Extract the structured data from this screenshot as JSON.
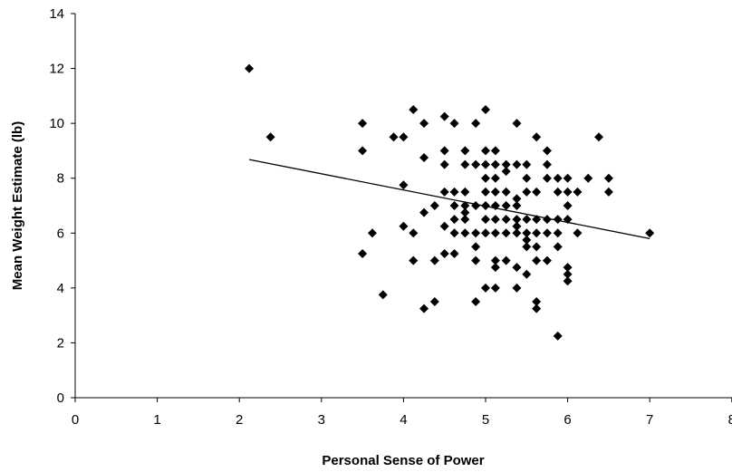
{
  "chart_data": {
    "type": "scatter",
    "xlabel": "Personal Sense of Power",
    "ylabel": "Mean Weight Estimate (lb)",
    "xlim": [
      0,
      8
    ],
    "ylim": [
      0,
      14
    ],
    "xticks": [
      "0",
      "1",
      "2",
      "3",
      "4",
      "5",
      "6",
      "7",
      "8"
    ],
    "yticks": [
      "0",
      "2",
      "4",
      "6",
      "8",
      "10",
      "12",
      "14"
    ],
    "grid": false,
    "legend": "none",
    "marker": "diamond",
    "color": "#000000",
    "points": [
      [
        2.12,
        12.0
      ],
      [
        2.38,
        9.5
      ],
      [
        3.5,
        10.0
      ],
      [
        3.5,
        9.0
      ],
      [
        3.5,
        5.25
      ],
      [
        3.62,
        6.0
      ],
      [
        3.75,
        3.75
      ],
      [
        3.88,
        9.5
      ],
      [
        4.0,
        9.5
      ],
      [
        4.0,
        7.75
      ],
      [
        4.0,
        6.25
      ],
      [
        4.12,
        10.5
      ],
      [
        4.12,
        6.0
      ],
      [
        4.12,
        5.0
      ],
      [
        4.25,
        10.0
      ],
      [
        4.25,
        8.75
      ],
      [
        4.25,
        6.75
      ],
      [
        4.25,
        3.25
      ],
      [
        4.38,
        7.0
      ],
      [
        4.38,
        5.0
      ],
      [
        4.38,
        3.5
      ],
      [
        4.5,
        10.25
      ],
      [
        4.5,
        9.0
      ],
      [
        4.5,
        8.5
      ],
      [
        4.5,
        7.5
      ],
      [
        4.5,
        6.25
      ],
      [
        4.5,
        5.25
      ],
      [
        4.62,
        10.0
      ],
      [
        4.62,
        7.5
      ],
      [
        4.62,
        7.0
      ],
      [
        4.62,
        6.5
      ],
      [
        4.62,
        6.0
      ],
      [
        4.62,
        5.25
      ],
      [
        4.75,
        9.0
      ],
      [
        4.75,
        8.5
      ],
      [
        4.75,
        7.5
      ],
      [
        4.75,
        7.0
      ],
      [
        4.75,
        6.75
      ],
      [
        4.75,
        6.5
      ],
      [
        4.75,
        6.0
      ],
      [
        4.88,
        10.0
      ],
      [
        4.88,
        8.5
      ],
      [
        4.88,
        7.0
      ],
      [
        4.88,
        6.0
      ],
      [
        4.88,
        5.5
      ],
      [
        4.88,
        5.0
      ],
      [
        4.88,
        3.5
      ],
      [
        5.0,
        10.5
      ],
      [
        5.0,
        9.0
      ],
      [
        5.0,
        8.5
      ],
      [
        5.0,
        8.0
      ],
      [
        5.0,
        7.5
      ],
      [
        5.0,
        7.0
      ],
      [
        5.0,
        6.5
      ],
      [
        5.0,
        6.0
      ],
      [
        5.0,
        4.0
      ],
      [
        5.12,
        9.0
      ],
      [
        5.12,
        8.5
      ],
      [
        5.12,
        8.0
      ],
      [
        5.12,
        7.5
      ],
      [
        5.12,
        7.0
      ],
      [
        5.12,
        6.5
      ],
      [
        5.12,
        6.0
      ],
      [
        5.12,
        5.0
      ],
      [
        5.12,
        4.75
      ],
      [
        5.12,
        4.0
      ],
      [
        5.25,
        8.5
      ],
      [
        5.25,
        8.25
      ],
      [
        5.25,
        7.5
      ],
      [
        5.25,
        7.0
      ],
      [
        5.25,
        6.5
      ],
      [
        5.25,
        6.0
      ],
      [
        5.25,
        5.0
      ],
      [
        5.38,
        10.0
      ],
      [
        5.38,
        8.5
      ],
      [
        5.38,
        7.25
      ],
      [
        5.38,
        7.0
      ],
      [
        5.38,
        6.5
      ],
      [
        5.38,
        6.25
      ],
      [
        5.38,
        6.0
      ],
      [
        5.38,
        4.75
      ],
      [
        5.38,
        4.0
      ],
      [
        5.5,
        8.5
      ],
      [
        5.5,
        8.0
      ],
      [
        5.5,
        7.5
      ],
      [
        5.5,
        6.5
      ],
      [
        5.5,
        6.0
      ],
      [
        5.5,
        5.75
      ],
      [
        5.5,
        5.5
      ],
      [
        5.5,
        4.5
      ],
      [
        5.62,
        9.5
      ],
      [
        5.62,
        7.5
      ],
      [
        5.62,
        6.5
      ],
      [
        5.62,
        6.0
      ],
      [
        5.62,
        5.5
      ],
      [
        5.62,
        5.0
      ],
      [
        5.62,
        3.5
      ],
      [
        5.62,
        3.25
      ],
      [
        5.75,
        9.0
      ],
      [
        5.75,
        8.5
      ],
      [
        5.75,
        8.0
      ],
      [
        5.75,
        6.5
      ],
      [
        5.75,
        6.0
      ],
      [
        5.75,
        5.0
      ],
      [
        5.88,
        8.0
      ],
      [
        5.88,
        7.5
      ],
      [
        5.88,
        6.5
      ],
      [
        5.88,
        6.0
      ],
      [
        5.88,
        5.5
      ],
      [
        5.88,
        2.25
      ],
      [
        6.0,
        8.0
      ],
      [
        6.0,
        7.5
      ],
      [
        6.0,
        7.0
      ],
      [
        6.0,
        6.5
      ],
      [
        6.0,
        4.75
      ],
      [
        6.0,
        4.5
      ],
      [
        6.0,
        4.25
      ],
      [
        6.12,
        7.5
      ],
      [
        6.12,
        6.0
      ],
      [
        6.25,
        8.0
      ],
      [
        6.38,
        9.5
      ],
      [
        6.5,
        8.0
      ],
      [
        6.5,
        7.5
      ],
      [
        7.0,
        6.0
      ]
    ],
    "trendline": {
      "x": [
        2.12,
        7.0
      ],
      "y": [
        8.68,
        5.8
      ]
    }
  }
}
